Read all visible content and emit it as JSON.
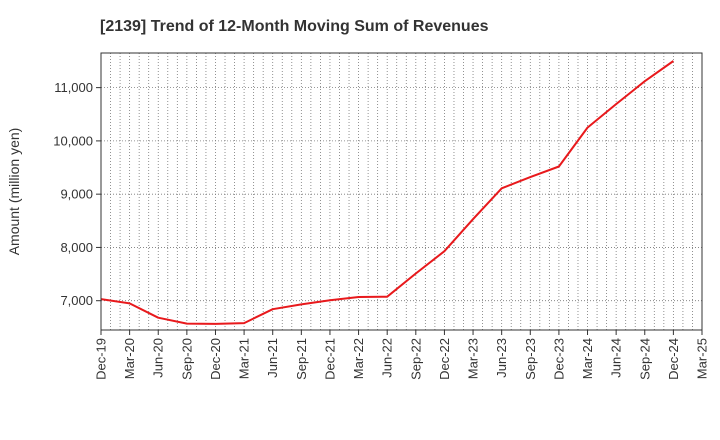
{
  "chart_data": {
    "type": "line",
    "title": "[2139]  Trend of 12-Month Moving Sum of Revenues",
    "xlabel": "",
    "ylabel": "Amount (million yen)",
    "ylim": [
      6450,
      11650
    ],
    "yticks": [
      7000,
      8000,
      9000,
      10000,
      11000
    ],
    "ytick_labels": [
      "7,000",
      "8,000",
      "9,000",
      "10,000",
      "11,000"
    ],
    "xtick_labels": [
      "Dec-19",
      "Mar-20",
      "Jun-20",
      "Sep-20",
      "Dec-20",
      "Mar-21",
      "Jun-21",
      "Sep-21",
      "Dec-21",
      "Mar-22",
      "Jun-22",
      "Sep-22",
      "Dec-22",
      "Mar-23",
      "Jun-23",
      "Sep-23",
      "Dec-23",
      "Mar-24",
      "Jun-24",
      "Sep-24",
      "Dec-24",
      "Mar-25"
    ],
    "grid": true,
    "line_color": "#e8191c",
    "series": [
      {
        "name": "",
        "x": [
          "Dec-19",
          "Mar-20",
          "Jun-20",
          "Sep-20",
          "Dec-20",
          "Mar-21",
          "Jun-21",
          "Sep-21",
          "Dec-21",
          "Mar-22",
          "Jun-22",
          "Sep-22",
          "Dec-22",
          "Mar-23",
          "Jun-23",
          "Sep-23",
          "Dec-23",
          "Mar-24",
          "Jun-24",
          "Sep-24",
          "Dec-24"
        ],
        "values": [
          7030,
          6950,
          6680,
          6570,
          6565,
          6580,
          6840,
          6930,
          7010,
          7070,
          7075,
          7510,
          7930,
          8530,
          9110,
          9320,
          9520,
          10250,
          10690,
          11120,
          11500
        ]
      }
    ]
  }
}
